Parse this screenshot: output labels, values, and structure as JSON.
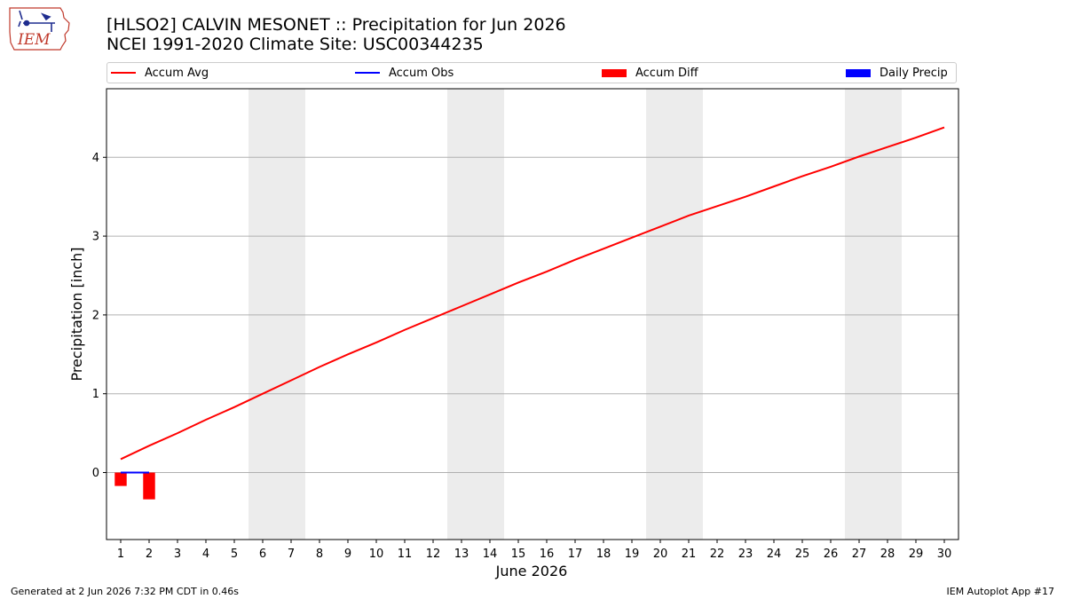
{
  "logo": {
    "text": "IEM"
  },
  "header": {
    "title_line1": "[HLSO2] CALVIN MESONET :: Precipitation for Jun 2026",
    "title_line2": "NCEI 1991-2020 Climate Site: USC00344235"
  },
  "legend": [
    {
      "label": "Accum Avg",
      "kind": "line",
      "color": "#ff0000"
    },
    {
      "label": "Accum Obs",
      "kind": "line",
      "color": "#0000ff"
    },
    {
      "label": "Accum Diff",
      "kind": "patch",
      "color": "#ff0000"
    },
    {
      "label": "Daily Precip",
      "kind": "patch",
      "color": "#0000ff"
    }
  ],
  "footer": {
    "left": "Generated at 2 Jun 2026 7:32 PM CDT in 0.46s",
    "right": "IEM Autoplot App #17"
  },
  "chart_data": {
    "type": "line",
    "title": "[HLSO2] CALVIN MESONET :: Precipitation for Jun 2026",
    "subtitle": "NCEI 1991-2020 Climate Site: USC00344235",
    "xlabel": "June 2026",
    "ylabel": "Precipitation [inch]",
    "xlim": [
      0.5,
      30.5
    ],
    "ylim": [
      -0.85,
      4.87
    ],
    "x_ticks": [
      1,
      2,
      3,
      4,
      5,
      6,
      7,
      8,
      9,
      10,
      11,
      12,
      13,
      14,
      15,
      16,
      17,
      18,
      19,
      20,
      21,
      22,
      23,
      24,
      25,
      26,
      27,
      28,
      29,
      30
    ],
    "y_ticks": [
      0,
      1,
      2,
      3,
      4
    ],
    "grid": "y",
    "legend_position": "top",
    "weekend_shading": [
      [
        5.5,
        7.5
      ],
      [
        12.5,
        14.5
      ],
      [
        19.5,
        21.5
      ],
      [
        26.5,
        28.5
      ]
    ],
    "series": [
      {
        "name": "Accum Avg",
        "type": "line",
        "color": "#ff0000",
        "x": [
          1,
          2,
          3,
          4,
          5,
          6,
          7,
          8,
          9,
          10,
          11,
          12,
          13,
          14,
          15,
          16,
          17,
          18,
          19,
          20,
          21,
          22,
          23,
          24,
          25,
          26,
          27,
          28,
          29,
          30
        ],
        "values": [
          0.17,
          0.34,
          0.5,
          0.67,
          0.83,
          1.0,
          1.17,
          1.34,
          1.5,
          1.65,
          1.81,
          1.96,
          2.11,
          2.26,
          2.41,
          2.55,
          2.7,
          2.84,
          2.98,
          3.12,
          3.26,
          3.38,
          3.5,
          3.63,
          3.76,
          3.88,
          4.01,
          4.13,
          4.25,
          4.38
        ]
      },
      {
        "name": "Accum Obs",
        "type": "line",
        "color": "#0000ff",
        "x": [
          1,
          2
        ],
        "values": [
          0.0,
          0.0
        ]
      },
      {
        "name": "Accum Diff",
        "type": "bar",
        "color": "#ff0000",
        "x": [
          1,
          2
        ],
        "values": [
          -0.17,
          -0.34
        ]
      },
      {
        "name": "Daily Precip",
        "type": "bar",
        "color": "#0000ff",
        "x": [
          1,
          2
        ],
        "values": [
          0.0,
          0.0
        ]
      }
    ]
  }
}
